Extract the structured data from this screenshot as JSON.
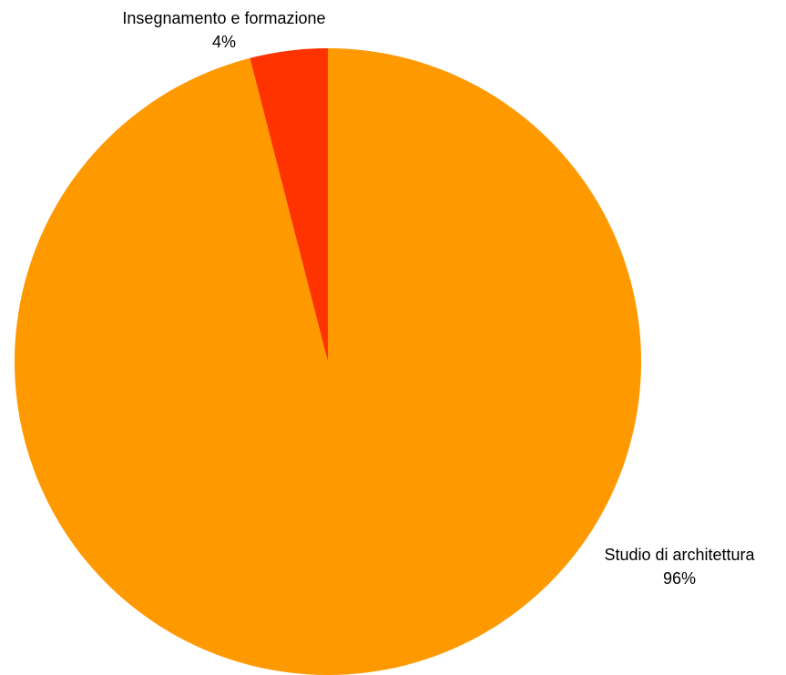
{
  "chart_data": {
    "type": "pie",
    "title": "",
    "slices": [
      {
        "label": "Studio di architettura",
        "value": 96,
        "value_label": "96%",
        "color": "#FF9900"
      },
      {
        "label": "Insegnamento e formazione",
        "value": 4,
        "value_label": "4%",
        "color": "#FF3300"
      }
    ],
    "start_angle": "12 o'clock",
    "direction": "clockwise",
    "legend": "none"
  }
}
